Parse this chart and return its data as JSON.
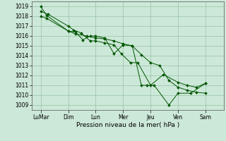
{
  "xlabel": "Pression niveau de la mer( hPa )",
  "bg_color": "#cce8d8",
  "grid_color": "#88bb99",
  "line_color": "#005500",
  "marker_color": "#005500",
  "ylim": [
    1008.5,
    1019.5
  ],
  "yticks": [
    1009,
    1010,
    1011,
    1012,
    1013,
    1014,
    1015,
    1016,
    1017,
    1018,
    1019
  ],
  "x_labels": [
    "LuMar",
    "Dim",
    "Lun",
    "Mer",
    "Jeu",
    "Ven",
    "Sam"
  ],
  "x_positions": [
    0.5,
    2.0,
    3.5,
    5.0,
    6.5,
    8.0,
    9.5
  ],
  "xlim": [
    0,
    10.5
  ],
  "series": [
    {
      "x": [
        0.5,
        0.8,
        2.0,
        2.4,
        3.0,
        3.5,
        4.0,
        4.5,
        5.0,
        5.5,
        6.0,
        6.5,
        7.0,
        7.5,
        8.0,
        8.5,
        9.0,
        9.5
      ],
      "y": [
        1018.0,
        1017.8,
        1016.5,
        1016.2,
        1016.0,
        1015.8,
        1015.7,
        1015.5,
        1015.2,
        1015.0,
        1014.1,
        1013.3,
        1013.0,
        1011.5,
        1010.8,
        1010.5,
        1010.3,
        1010.2
      ]
    },
    {
      "x": [
        0.5,
        0.9,
        2.0,
        2.3,
        2.7,
        3.2,
        3.5,
        4.0,
        4.5,
        4.9,
        5.4,
        5.8,
        6.5,
        7.2,
        8.0,
        8.5,
        9.0,
        9.5
      ],
      "y": [
        1018.5,
        1018.2,
        1017.0,
        1016.6,
        1016.3,
        1015.5,
        1015.5,
        1015.3,
        1015.1,
        1014.2,
        1013.3,
        1013.3,
        1011.0,
        1012.1,
        1011.3,
        1011.0,
        1010.8,
        1011.2
      ]
    },
    {
      "x": [
        0.5,
        0.8,
        2.0,
        2.4,
        2.8,
        3.2,
        3.5,
        4.0,
        4.5,
        5.0,
        5.5,
        6.0,
        6.3,
        6.7,
        7.5,
        8.0,
        8.7,
        9.5
      ],
      "y": [
        1019.0,
        1018.1,
        1016.5,
        1016.4,
        1015.6,
        1016.0,
        1016.0,
        1015.8,
        1014.2,
        1015.1,
        1015.0,
        1011.0,
        1011.0,
        1011.0,
        1009.0,
        1010.2,
        1010.2,
        1011.2
      ]
    }
  ]
}
